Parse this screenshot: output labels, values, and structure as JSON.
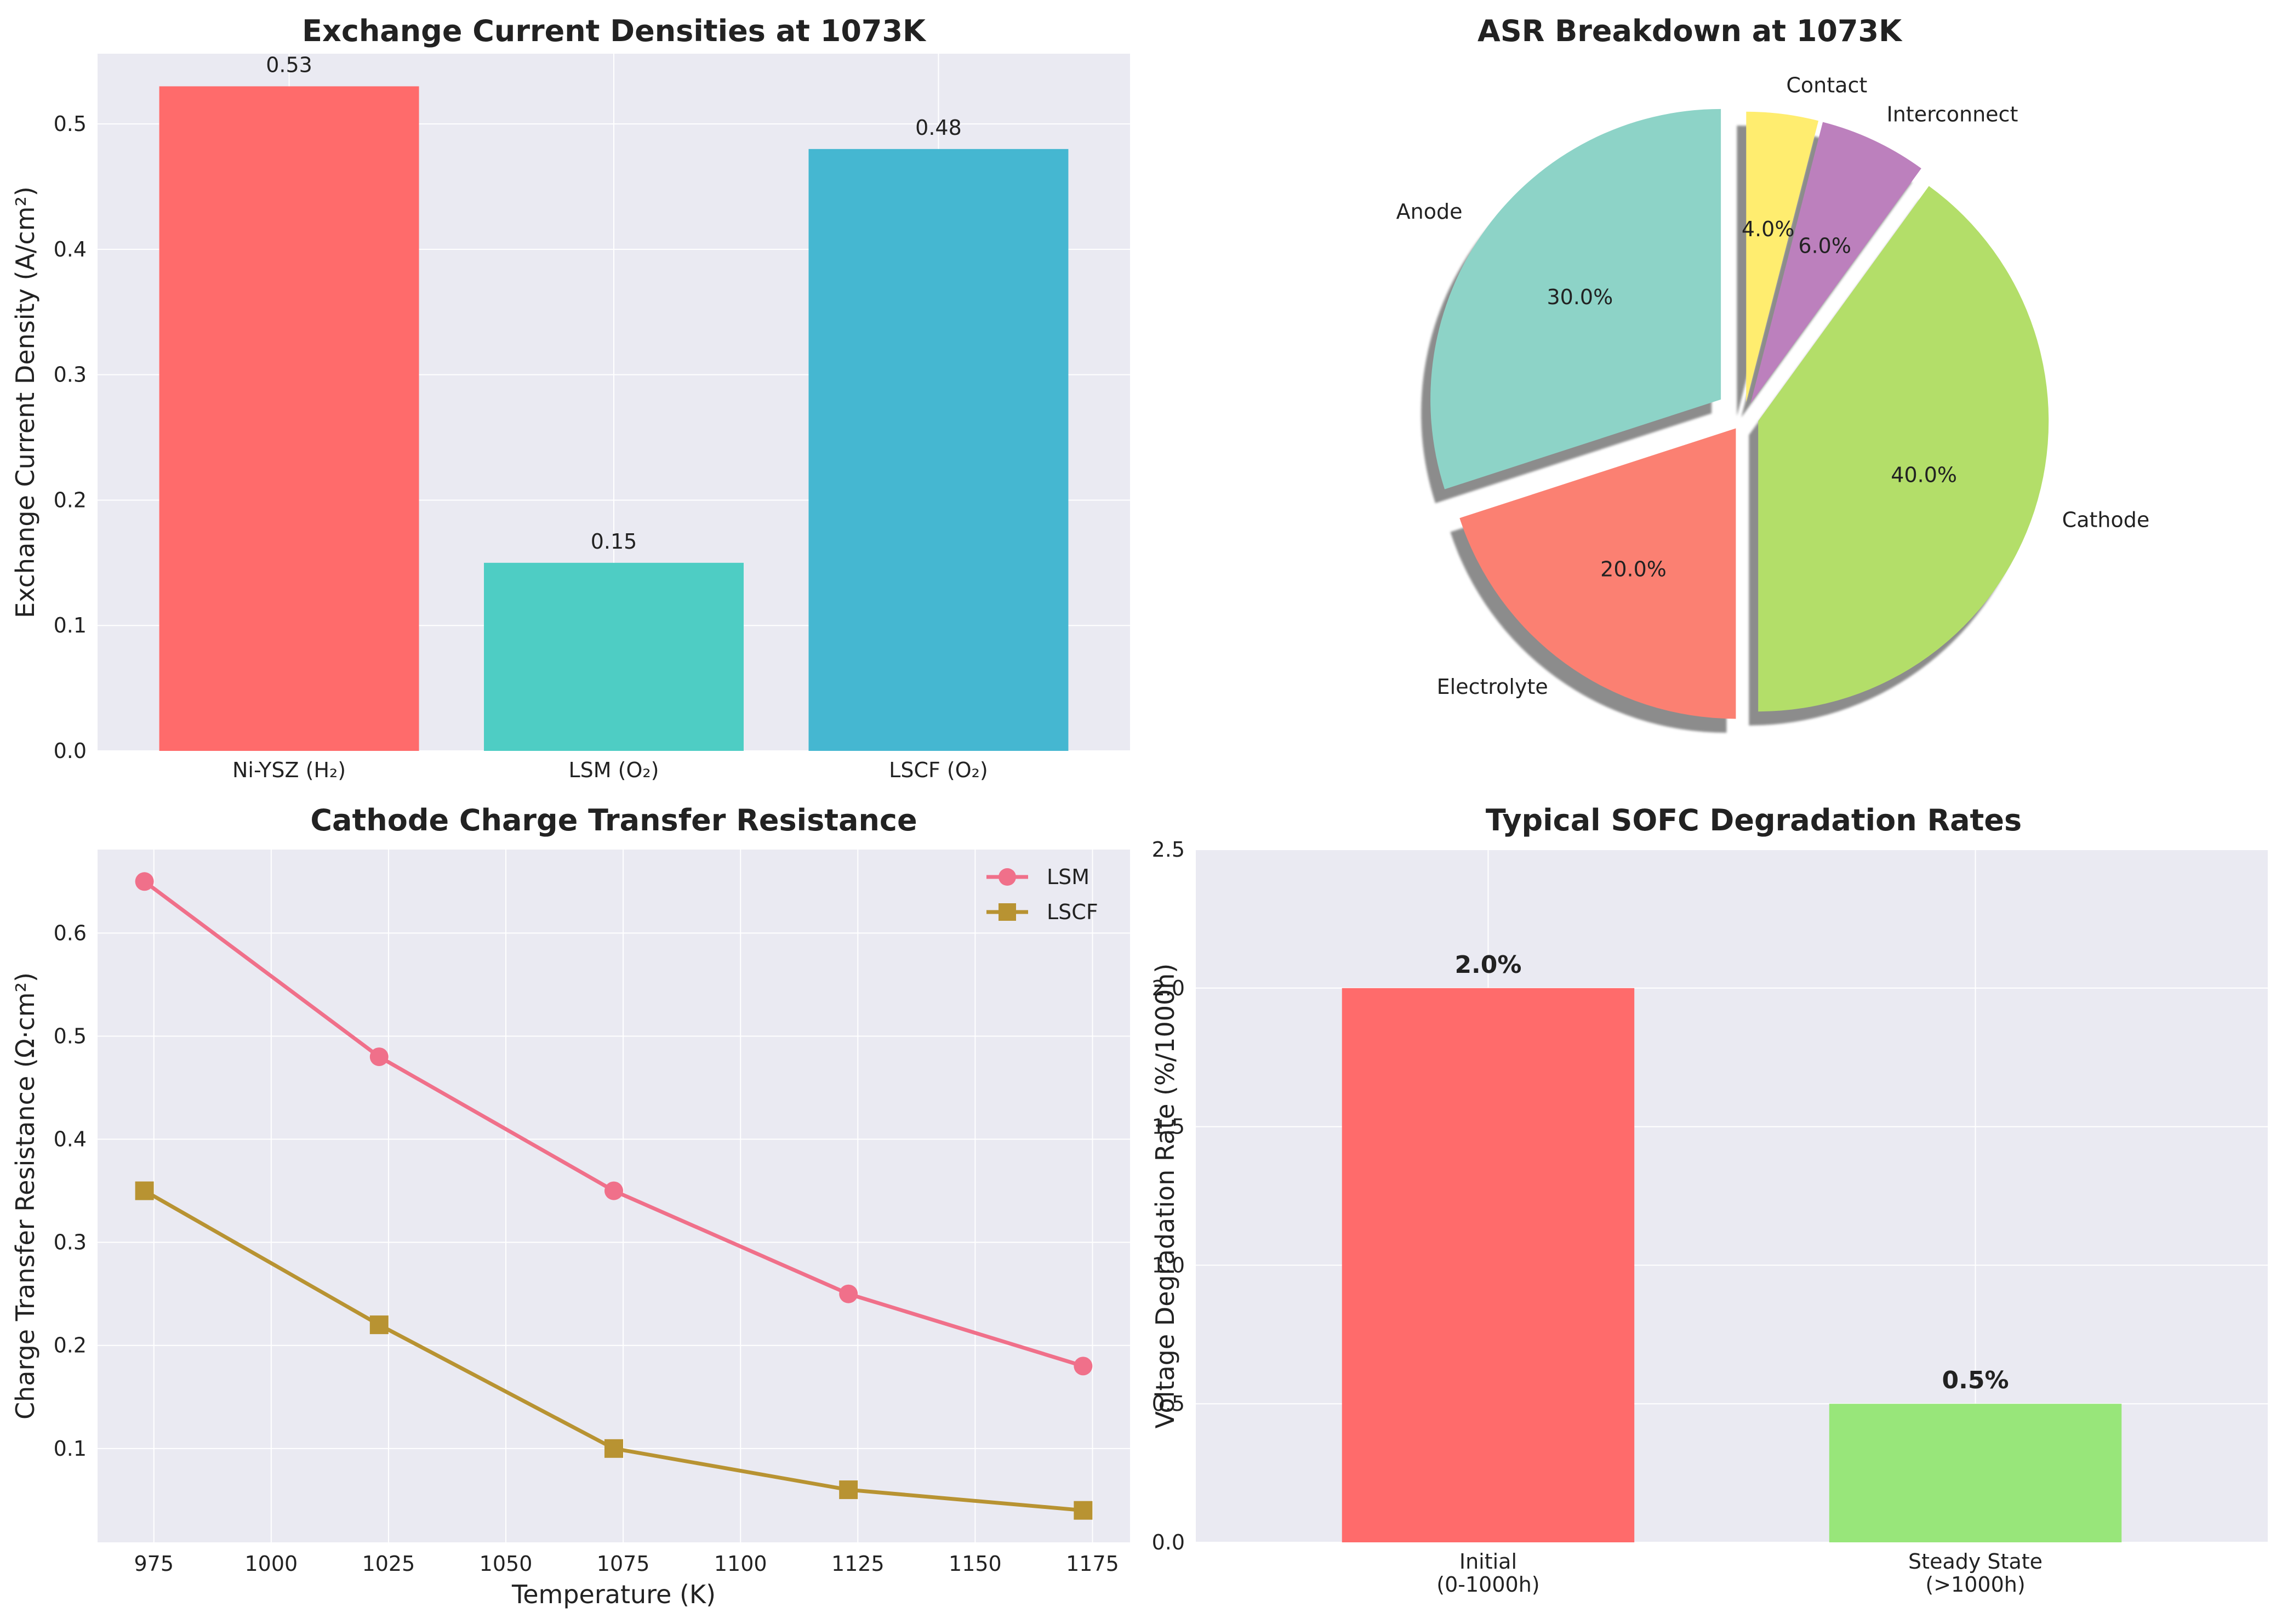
{
  "chart_data": [
    {
      "type": "bar",
      "title": "Exchange Current Densities at 1073K",
      "xlabel": "",
      "ylabel": "Exchange Current Density (A/cm²)",
      "categories": [
        "Ni-YSZ (H₂)",
        "LSM (O₂)",
        "LSCF (O₂)"
      ],
      "values": [
        0.53,
        0.15,
        0.48
      ],
      "value_labels": [
        "0.53",
        "0.15",
        "0.48"
      ],
      "colors": [
        "#ff6b6b",
        "#4ecdc4",
        "#45b7d1"
      ],
      "ylim": [
        0,
        0.556
      ],
      "yticks": [
        0.0,
        0.1,
        0.2,
        0.3,
        0.4,
        0.5
      ],
      "ytick_labels": [
        "0.0",
        "0.1",
        "0.2",
        "0.3",
        "0.4",
        "0.5"
      ],
      "grid": true
    },
    {
      "type": "pie",
      "title": "ASR Breakdown at 1073K",
      "labels": [
        "Anode",
        "Electrolyte",
        "Cathode",
        "Interconnect",
        "Contact"
      ],
      "values": [
        30,
        20,
        40,
        6,
        4
      ],
      "pct_labels": [
        "30.0%",
        "20.0%",
        "40.0%",
        "6.0%",
        "4.0%"
      ],
      "colors": [
        "#8dd3c7",
        "#fb8072",
        "#b3de69",
        "#bc80bd",
        "#ffed6f"
      ],
      "explode": [
        0.1,
        0.05,
        0.05,
        0.05,
        0.05
      ],
      "start_angle": 90,
      "shadow": true
    },
    {
      "type": "line",
      "title": "Cathode Charge Transfer Resistance",
      "xlabel": "Temperature (K)",
      "ylabel": "Charge Transfer Resistance (Ω·cm²)",
      "x": [
        973,
        1023,
        1073,
        1123,
        1173
      ],
      "series": [
        {
          "name": "LSM",
          "values": [
            0.65,
            0.48,
            0.35,
            0.25,
            0.18
          ],
          "color": "#f0708a",
          "marker": "circle"
        },
        {
          "name": "LSCF",
          "values": [
            0.35,
            0.22,
            0.1,
            0.06,
            0.04
          ],
          "color": "#b89332",
          "marker": "square"
        }
      ],
      "xlim": [
        963,
        1183
      ],
      "ylim": [
        0.009,
        0.681
      ],
      "xticks": [
        975,
        1000,
        1025,
        1050,
        1075,
        1100,
        1125,
        1150,
        1175
      ],
      "xtick_labels": [
        "975",
        "1000",
        "1025",
        "1050",
        "1075",
        "1100",
        "1125",
        "1150",
        "1175"
      ],
      "yticks": [
        0.1,
        0.2,
        0.3,
        0.4,
        0.5,
        0.6
      ],
      "ytick_labels": [
        "0.1",
        "0.2",
        "0.3",
        "0.4",
        "0.5",
        "0.6"
      ],
      "legend": "top-right",
      "grid": true
    },
    {
      "type": "bar",
      "title": "Typical SOFC Degradation Rates",
      "xlabel": "",
      "ylabel": "Voltage Degradation Rate (%/1000h)",
      "categories": [
        "Initial\n(0-1000h)",
        "Steady State\n(>1000h)"
      ],
      "values": [
        2.0,
        0.5
      ],
      "value_labels": [
        "2.0%",
        "0.5%"
      ],
      "colors": [
        "#ff6b6b",
        "#98e67a"
      ],
      "ylim": [
        0,
        2.5
      ],
      "yticks": [
        0.0,
        0.5,
        1.0,
        1.5,
        2.0,
        2.5
      ],
      "ytick_labels": [
        "0.0",
        "0.5",
        "1.0",
        "1.5",
        "2.0",
        "2.5"
      ],
      "grid": true
    }
  ]
}
